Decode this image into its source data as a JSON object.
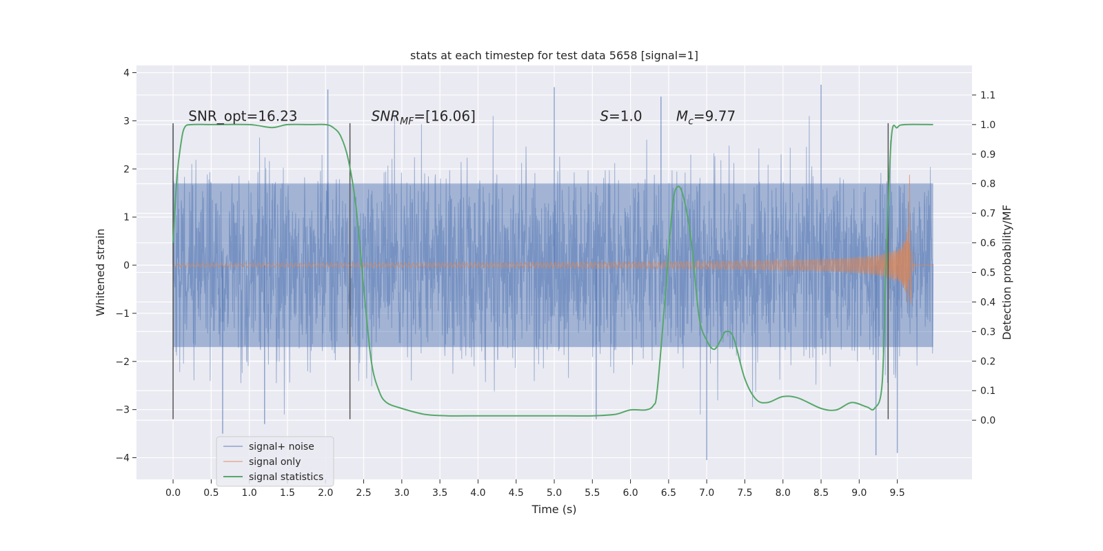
{
  "chart_data": {
    "type": "line",
    "title": "stats at each timestep for test data 5658 [signal=1]",
    "xlabel": "Time (s)",
    "ylabel": "Whitened strain",
    "ylabel_right": "Detection probability/MF",
    "xlim": [
      -0.48,
      10.48
    ],
    "ylim": [
      -4.45,
      4.15
    ],
    "ylim_right": [
      -0.2,
      1.2
    ],
    "x_ticks": [
      "0.0",
      "0.5",
      "1.0",
      "1.5",
      "2.0",
      "2.5",
      "3.0",
      "3.5",
      "4.0",
      "4.5",
      "5.0",
      "5.5",
      "6.0",
      "6.5",
      "7.0",
      "7.5",
      "8.0",
      "8.5",
      "9.0",
      "9.5"
    ],
    "y_ticks": [
      "4",
      "3",
      "2",
      "1",
      "0",
      "−1",
      "−2",
      "−3",
      "−4"
    ],
    "y_ticks_right": [
      "1.1",
      "1.0",
      "0.9",
      "0.8",
      "0.7",
      "0.6",
      "0.5",
      "0.4",
      "0.3",
      "0.2",
      "0.1",
      "0.0"
    ],
    "grid": true,
    "background": "#eaeaf2",
    "annotations": [
      {
        "text": "SNR_opt=16.23",
        "x": 0.2,
        "y": 3.0
      },
      {
        "text": "SNR",
        "sub": "MF",
        "tail": "=[16.06]",
        "italic": true,
        "x": 2.6,
        "y": 3.0
      },
      {
        "text": "S",
        "tail": "=1.0",
        "italic": true,
        "x": 5.6,
        "y": 3.0
      },
      {
        "text": "M",
        "sub": "c",
        "tail": "=9.77",
        "italic": true,
        "x": 6.6,
        "y": 3.0
      }
    ],
    "vlines_x": [
      0.0,
      2.32,
      9.38
    ],
    "vlines_y": [
      -3.2,
      2.95
    ],
    "series": [
      {
        "name": "signal+ noise",
        "color": "#4c72b0",
        "kind": "noise",
        "x_range": [
          0.0,
          9.97
        ],
        "envelope_core": 1.7,
        "peaks": [
          [
            0.0,
            2.9
          ],
          [
            0.65,
            -3.5
          ],
          [
            1.2,
            -3.3
          ],
          [
            2.03,
            3.65
          ],
          [
            5.0,
            3.7
          ],
          [
            5.55,
            -3.2
          ],
          [
            6.4,
            3.5
          ],
          [
            7.0,
            -4.05
          ],
          [
            8.5,
            3.75
          ],
          [
            9.22,
            -3.95
          ],
          [
            9.5,
            -3.9
          ]
        ]
      },
      {
        "name": "signal only",
        "color": "#dd8452",
        "kind": "chirp",
        "x_range": [
          0.0,
          9.97
        ],
        "merger_x": 9.66,
        "peak_amplitude": 2.0
      },
      {
        "name": "signal statistics",
        "color": "#55a868",
        "axis": "right",
        "x": [
          0.0,
          0.05,
          0.1,
          0.15,
          0.25,
          0.5,
          1.0,
          1.3,
          1.5,
          1.8,
          2.0,
          2.1,
          2.2,
          2.3,
          2.4,
          2.5,
          2.6,
          2.7,
          2.8,
          3.0,
          3.3,
          3.6,
          4.0,
          4.5,
          5.0,
          5.5,
          5.8,
          6.0,
          6.2,
          6.3,
          6.35,
          6.45,
          6.55,
          6.62,
          6.7,
          6.8,
          6.9,
          7.0,
          7.1,
          7.2,
          7.25,
          7.35,
          7.5,
          7.65,
          7.8,
          8.0,
          8.2,
          8.5,
          8.7,
          8.9,
          9.1,
          9.2,
          9.3,
          9.35,
          9.42,
          9.5,
          9.6,
          9.97
        ],
        "y": [
          0.6,
          0.82,
          0.93,
          0.99,
          1.0,
          1.0,
          1.0,
          0.99,
          1.0,
          1.0,
          1.0,
          0.99,
          0.96,
          0.88,
          0.72,
          0.45,
          0.2,
          0.1,
          0.06,
          0.04,
          0.02,
          0.015,
          0.015,
          0.015,
          0.015,
          0.015,
          0.02,
          0.035,
          0.035,
          0.05,
          0.1,
          0.4,
          0.72,
          0.79,
          0.75,
          0.6,
          0.35,
          0.27,
          0.24,
          0.28,
          0.3,
          0.28,
          0.14,
          0.07,
          0.06,
          0.08,
          0.075,
          0.04,
          0.035,
          0.06,
          0.045,
          0.04,
          0.12,
          0.5,
          0.95,
          0.99,
          1.0,
          1.0
        ]
      }
    ],
    "legend": {
      "placement": "lower-left",
      "entries": [
        "signal+ noise",
        "signal only",
        "signal statistics"
      ]
    }
  }
}
